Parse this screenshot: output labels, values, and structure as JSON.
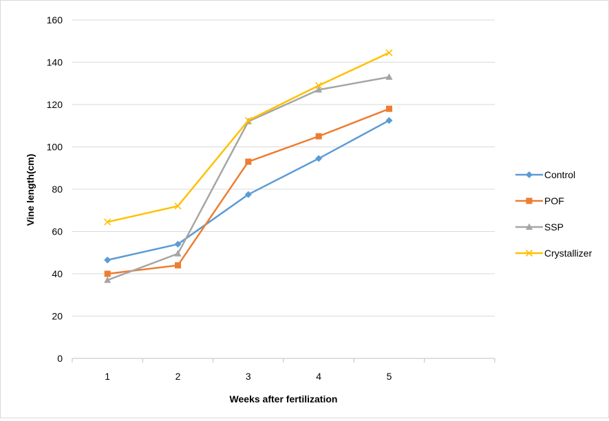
{
  "chart_data": {
    "type": "line",
    "x": [
      1,
      2,
      3,
      4,
      5
    ],
    "categories": [
      "1",
      "2",
      "3",
      "4",
      "5"
    ],
    "series": [
      {
        "name": "Control",
        "values": [
          46.5,
          54,
          77.5,
          94.5,
          112.5
        ],
        "color": "#5b9bd5",
        "marker": "diamond"
      },
      {
        "name": "POF",
        "values": [
          40,
          44,
          93,
          105,
          118
        ],
        "color": "#ed7d31",
        "marker": "square"
      },
      {
        "name": "SSP",
        "values": [
          37,
          49.5,
          112,
          127,
          133
        ],
        "color": "#a5a5a5",
        "marker": "triangle"
      },
      {
        "name": "Crystallizer",
        "values": [
          64.5,
          72,
          112.5,
          129,
          144.5
        ],
        "color": "#ffc000",
        "marker": "x"
      }
    ],
    "xlabel": "Weeks after fertilization",
    "ylabel": "Vine length(cm)",
    "ylim": [
      0,
      160
    ],
    "yticks": [
      0,
      20,
      40,
      60,
      80,
      100,
      120,
      140,
      160
    ],
    "ytick_labels": [
      "0",
      "20",
      "40",
      "60",
      "80",
      "100",
      "120",
      "140",
      "160"
    ],
    "grid": true,
    "legend": "right"
  }
}
